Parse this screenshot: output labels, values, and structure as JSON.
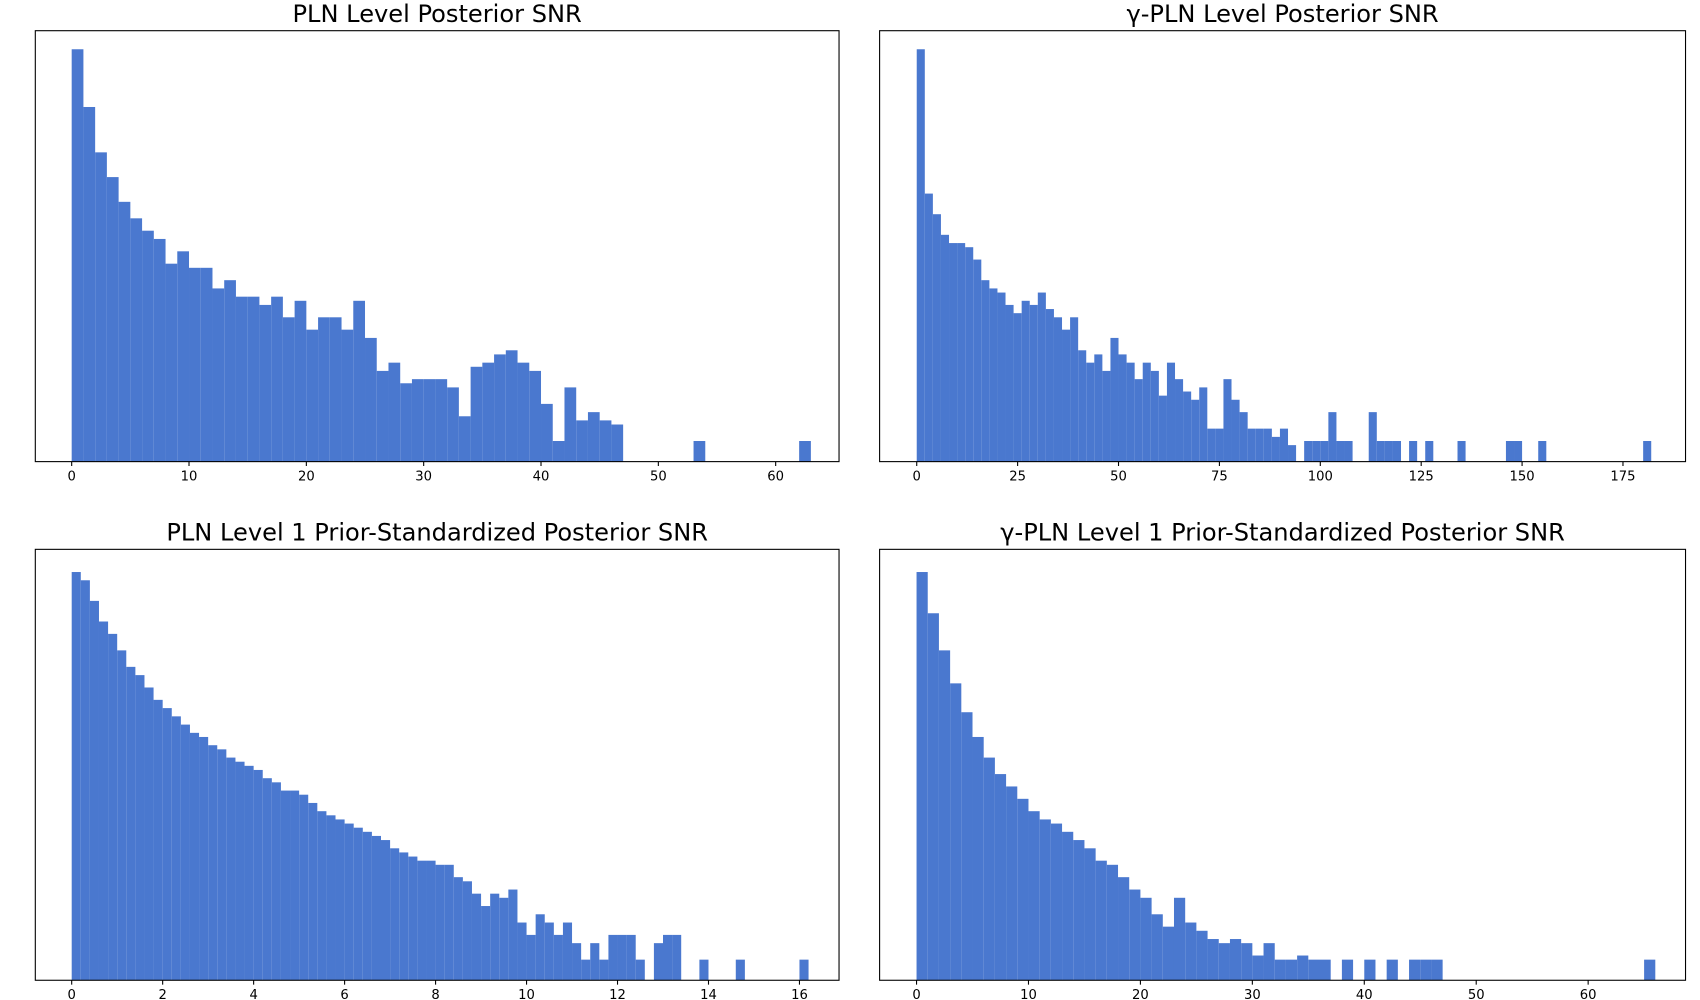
{
  "chart_data": [
    {
      "type": "histogram",
      "title": "PLN Level Posterior SNR",
      "color": "#4a78cf",
      "bins": [
        0,
        1,
        2,
        3,
        4,
        5,
        6,
        7,
        8,
        9,
        10,
        11,
        12,
        13,
        14,
        15,
        16,
        17,
        18,
        19,
        20,
        21,
        22,
        23,
        24,
        25,
        26,
        27,
        28,
        29,
        30,
        31,
        32,
        33,
        34,
        35,
        36,
        37,
        38,
        39,
        40,
        41,
        42,
        43,
        44,
        45,
        46,
        47,
        48,
        49,
        50,
        51,
        52,
        53,
        54,
        55,
        56,
        57,
        58,
        59,
        60,
        61,
        62,
        63
      ],
      "values": [
        100,
        86,
        75,
        69,
        63,
        59,
        56,
        54,
        48,
        51,
        47,
        47,
        42,
        44,
        40,
        40,
        38,
        40,
        35,
        39,
        32,
        35,
        35,
        32,
        39,
        30,
        22,
        24,
        19,
        20,
        20,
        20,
        18,
        11,
        23,
        24,
        26,
        27,
        24,
        22,
        14,
        5,
        18,
        10,
        12,
        10,
        9,
        0,
        0,
        0,
        0,
        0,
        0,
        5,
        0,
        0,
        0,
        0,
        0,
        0,
        0,
        0,
        5
      ],
      "xlim": [
        -3.1,
        65.4
      ],
      "ylim": [
        0,
        104.5
      ],
      "xticks": [
        0,
        10,
        20,
        30,
        40,
        50,
        60
      ]
    },
    {
      "type": "histogram",
      "title": "γ-PLN Level Posterior SNR",
      "color": "#4a78cf",
      "bins": [
        0,
        2,
        4,
        6,
        8,
        10,
        12,
        14,
        16,
        18,
        20,
        22,
        24,
        26,
        28,
        30,
        32,
        34,
        36,
        38,
        40,
        42,
        44,
        46,
        48,
        50,
        52,
        54,
        56,
        58,
        60,
        62,
        64,
        66,
        68,
        70,
        72,
        74,
        76,
        78,
        80,
        82,
        84,
        86,
        88,
        90,
        92,
        94,
        96,
        98,
        100,
        102,
        104,
        106,
        108,
        110,
        112,
        114,
        116,
        118,
        120,
        122,
        124,
        126,
        128,
        130,
        132,
        134,
        136,
        138,
        140,
        142,
        144,
        146,
        148,
        150,
        152,
        154,
        156,
        158,
        160,
        162,
        164,
        166,
        168,
        170,
        172,
        174,
        176,
        178,
        180,
        182
      ],
      "values": [
        100,
        65,
        60,
        55,
        53,
        53,
        52,
        49,
        44,
        42,
        41,
        38,
        36,
        39,
        38,
        41,
        37,
        35,
        32,
        35,
        27,
        24,
        26,
        22,
        30,
        26,
        24,
        20,
        24,
        22,
        16,
        24,
        20,
        17,
        15,
        18,
        8,
        8,
        20,
        15,
        12,
        8,
        8,
        8,
        6,
        8,
        4,
        0,
        5,
        5,
        5,
        12,
        5,
        5,
        0,
        0,
        12,
        5,
        5,
        5,
        0,
        5,
        0,
        5,
        0,
        0,
        0,
        5,
        0,
        0,
        0,
        0,
        0,
        5,
        5,
        0,
        0,
        5,
        0,
        0,
        0,
        0,
        0,
        0,
        0,
        0,
        0,
        0,
        0,
        0,
        5
      ],
      "xlim": [
        -9.2,
        190.5
      ],
      "ylim": [
        0,
        104.5
      ],
      "xticks": [
        0,
        25,
        50,
        75,
        100,
        125,
        150,
        175
      ]
    },
    {
      "type": "histogram",
      "title": "PLN Level 1 Prior-Standardized Posterior SNR",
      "color": "#4a78cf",
      "bins": [
        0,
        0.2,
        0.4,
        0.6,
        0.8,
        1,
        1.2,
        1.4,
        1.6,
        1.8,
        2,
        2.2,
        2.4,
        2.6,
        2.8,
        3,
        3.2,
        3.4,
        3.6,
        3.8,
        4,
        4.2,
        4.4,
        4.6,
        4.8,
        5,
        5.2,
        5.4,
        5.6,
        5.8,
        6,
        6.2,
        6.4,
        6.6,
        6.8,
        7,
        7.2,
        7.4,
        7.6,
        7.8,
        8,
        8.2,
        8.4,
        8.6,
        8.8,
        9,
        9.2,
        9.4,
        9.6,
        9.8,
        10,
        10.2,
        10.4,
        10.6,
        10.8,
        11,
        11.2,
        11.4,
        11.6,
        11.8,
        12,
        12.2,
        12.4,
        12.6,
        12.8,
        13,
        13.2,
        13.4,
        13.6,
        13.8,
        14,
        14.2,
        14.4,
        14.6,
        14.8,
        15,
        15.2,
        15.4,
        15.6,
        15.8,
        16,
        16.2
      ],
      "values": [
        99,
        97,
        92,
        87,
        84,
        80,
        76,
        74,
        71,
        68,
        66,
        64,
        62,
        60,
        59,
        57,
        56,
        54,
        53,
        52,
        51,
        49,
        48,
        46,
        46,
        45,
        43,
        41,
        40,
        39,
        38,
        37,
        36,
        35,
        34,
        32,
        31,
        30,
        29,
        29,
        28,
        28,
        25,
        24,
        21,
        18,
        21,
        20,
        22,
        14,
        11,
        16,
        14,
        11,
        14,
        9,
        5,
        9,
        5,
        11,
        11,
        11,
        5,
        0,
        9,
        11,
        11,
        0,
        0,
        5,
        0,
        0,
        0,
        5,
        0,
        0,
        0,
        0,
        0,
        0,
        5
      ],
      "xlim": [
        -0.8,
        16.87
      ],
      "ylim": [
        0,
        104.5
      ],
      "xticks": [
        0,
        2,
        4,
        6,
        8,
        10,
        12,
        14,
        16
      ]
    },
    {
      "type": "histogram",
      "title": "γ-PLN Level 1 Prior-Standardized Posterior SNR",
      "color": "#4a78cf",
      "bins": [
        0,
        1,
        2,
        3,
        4,
        5,
        6,
        7,
        8,
        9,
        10,
        11,
        12,
        13,
        14,
        15,
        16,
        17,
        18,
        19,
        20,
        21,
        22,
        23,
        24,
        25,
        26,
        27,
        28,
        29,
        30,
        31,
        32,
        33,
        34,
        35,
        36,
        37,
        38,
        39,
        40,
        41,
        42,
        43,
        44,
        45,
        46,
        47,
        48,
        49,
        50,
        51,
        52,
        53,
        54,
        55,
        56,
        57,
        58,
        59,
        60,
        61,
        62,
        63,
        64,
        65,
        66
      ],
      "values": [
        99,
        89,
        80,
        72,
        65,
        59,
        54,
        50,
        47,
        44,
        41,
        39,
        38,
        36,
        34,
        32,
        29,
        28,
        25,
        22,
        20,
        16,
        13,
        20,
        14,
        12,
        10,
        9,
        10,
        9,
        6,
        9,
        5,
        5,
        6,
        5,
        5,
        0,
        5,
        0,
        5,
        0,
        5,
        0,
        5,
        5,
        5,
        0,
        0,
        0,
        0,
        0,
        0,
        0,
        0,
        0,
        0,
        0,
        0,
        0,
        0,
        0,
        0,
        0,
        0,
        5
      ],
      "xlim": [
        -3.3,
        68.7
      ],
      "ylim": [
        0,
        104.5
      ],
      "xticks": [
        0,
        10,
        20,
        30,
        40,
        50,
        60
      ]
    }
  ]
}
